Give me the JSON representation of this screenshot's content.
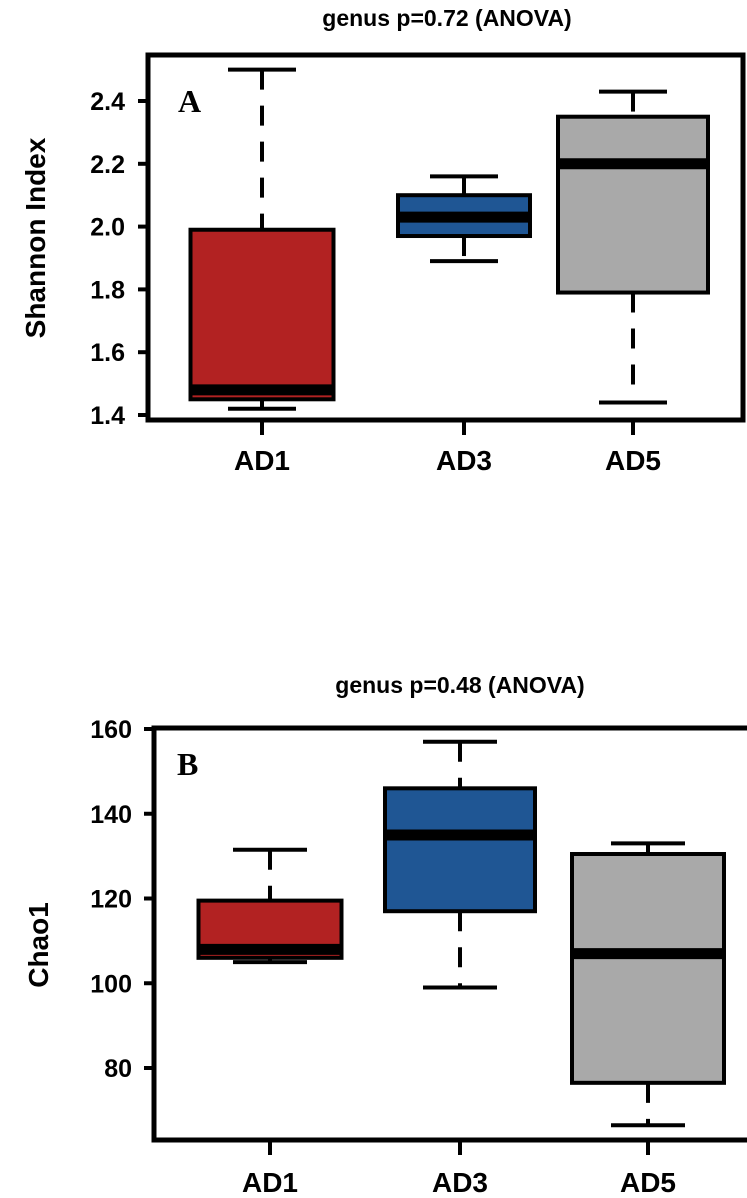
{
  "chart_data": [
    {
      "type": "box",
      "panel_label": "A",
      "title": "genus p=0.72 (ANOVA)",
      "xlabel": "",
      "ylabel": "Shannon Index",
      "categories": [
        "AD1",
        "AD3",
        "AD5"
      ],
      "yticks": [
        "1.4",
        "1.6",
        "1.8",
        "2.0",
        "2.2",
        "2.4"
      ],
      "ylim": [
        1.38,
        2.55
      ],
      "boxes": [
        {
          "category": "AD1",
          "color": "#b22222",
          "whisker_low": 1.42,
          "q1": 1.45,
          "median": 1.48,
          "q3": 1.99,
          "whisker_high": 2.5
        },
        {
          "category": "AD3",
          "color": "#1f5694",
          "whisker_low": 1.89,
          "q1": 1.97,
          "median": 2.03,
          "q3": 2.1,
          "whisker_high": 2.16
        },
        {
          "category": "AD5",
          "color": "#a9a9a9",
          "whisker_low": 1.44,
          "q1": 1.79,
          "median": 2.2,
          "q3": 2.35,
          "whisker_high": 2.43
        }
      ],
      "grid": false,
      "legend": "none"
    },
    {
      "type": "box",
      "panel_label": "B",
      "title": "genus p=0.48 (ANOVA)",
      "xlabel": "",
      "ylabel": "Chao1",
      "categories": [
        "AD1",
        "AD3",
        "AD5"
      ],
      "yticks": [
        "80",
        "100",
        "120",
        "140",
        "160"
      ],
      "ylim": [
        63,
        160
      ],
      "boxes": [
        {
          "category": "AD1",
          "color": "#b22222",
          "whisker_low": 105,
          "q1": 106,
          "median": 108,
          "q3": 119.5,
          "whisker_high": 131.5
        },
        {
          "category": "AD3",
          "color": "#1f5694",
          "whisker_low": 99,
          "q1": 117,
          "median": 135,
          "q3": 146,
          "whisker_high": 157
        },
        {
          "category": "AD5",
          "color": "#a9a9a9",
          "whisker_low": 66.5,
          "q1": 76.5,
          "median": 107,
          "q3": 130.5,
          "whisker_high": 133
        }
      ],
      "grid": false,
      "legend": "none"
    }
  ]
}
